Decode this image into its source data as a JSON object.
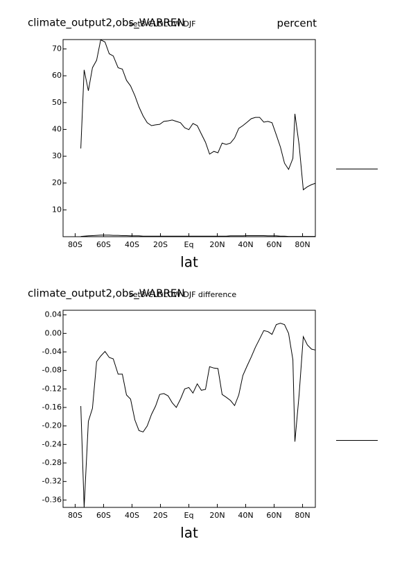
{
  "chart_data": [
    {
      "type": "line",
      "title": "climate_output2,obs_WARREN",
      "subtitle": "set3 CLDLOW DJF",
      "units": "percent",
      "xlabel": "lat",
      "x": [
        -76,
        -73.7,
        -70.7,
        -67.8,
        -64.9,
        -62,
        -59,
        -56,
        -53.2,
        -49.8,
        -46.8,
        -43.9,
        -41,
        -38,
        -35.1,
        -32.2,
        -29.3,
        -26.3,
        -23.4,
        -20.5,
        -17.6,
        -14.6,
        -11.7,
        -8.8,
        -5.9,
        -2.9,
        0,
        2.9,
        5.9,
        8.8,
        11.7,
        14.6,
        17.6,
        20.5,
        23.4,
        26.3,
        29.3,
        32.2,
        35.1,
        38,
        41,
        43.9,
        46.8,
        49.8,
        52.7,
        55.6,
        58.5,
        61.5,
        64.4,
        67.3,
        70.2,
        73.2,
        74.6,
        77.6,
        80.5,
        83.4,
        86.3,
        89
      ],
      "series": [
        {
          "color": "#000000",
          "values": [
            32.9,
            62.2,
            54.4,
            63,
            65.8,
            73.4,
            72.6,
            68.2,
            67.4,
            63,
            62.5,
            58.3,
            56.2,
            52.6,
            48.4,
            45,
            42.5,
            41.4,
            41.7,
            41.9,
            43,
            43.2,
            43.5,
            43,
            42.5,
            40.6,
            39.9,
            42.2,
            41.4,
            38.3,
            35.2,
            30.8,
            31.8,
            31.3,
            34.9,
            34.4,
            34.9,
            36.8,
            40.4,
            41.4,
            42.7,
            44,
            44.5,
            44.5,
            42.7,
            43,
            42.5,
            38,
            33.4,
            27.4,
            25.1,
            29.2,
            45.8,
            34.2,
            17.5,
            18.6,
            19.4,
            19.9
          ]
        },
        {
          "color": "#000000",
          "values": [
            0.1,
            0.2,
            0.3,
            0.4,
            0.5,
            0.6,
            0.6,
            0.6,
            0.5,
            0.5,
            0.4,
            0.4,
            0.3,
            0.3,
            0.3,
            0.2,
            0.2,
            0.2,
            0.2,
            0.2,
            0.2,
            0.2,
            0.2,
            0.2,
            0.2,
            0.2,
            0.2,
            0.2,
            0.2,
            0.2,
            0.2,
            0.2,
            0.2,
            0.2,
            0.2,
            0.2,
            0.3,
            0.3,
            0.3,
            0.3,
            0.4,
            0.4,
            0.4,
            0.4,
            0.4,
            0.3,
            0.3,
            0.3,
            0.2,
            0.2,
            0.1,
            0.1,
            0.1,
            0.1,
            0.1,
            0.1,
            0.1,
            0.1
          ]
        }
      ],
      "xlim": [
        -88.5,
        89
      ],
      "ylim": [
        0,
        73.5
      ],
      "xticks": [
        {
          "value": -80,
          "label": "80S"
        },
        {
          "value": -60,
          "label": "60S"
        },
        {
          "value": -40,
          "label": "40S"
        },
        {
          "value": -20,
          "label": "20S"
        },
        {
          "value": 0,
          "label": "Eq"
        },
        {
          "value": 20,
          "label": "20N"
        },
        {
          "value": 40,
          "label": "40N"
        },
        {
          "value": 60,
          "label": "60N"
        },
        {
          "value": 80,
          "label": "80N"
        }
      ],
      "yticks": [
        10,
        20,
        30,
        40,
        50,
        60,
        70
      ]
    },
    {
      "type": "line",
      "title": "climate_output2,obs_WARREN",
      "subtitle": "set3 CLDLOW DJF difference",
      "xlabel": "lat",
      "x": [
        -76,
        -73.7,
        -70.7,
        -67.8,
        -64.9,
        -62,
        -59,
        -56,
        -53.2,
        -49.8,
        -46.8,
        -43.9,
        -41,
        -38,
        -35.1,
        -32.2,
        -29.3,
        -26.3,
        -23.4,
        -20.5,
        -17.6,
        -14.6,
        -11.7,
        -8.8,
        -5.9,
        -2.9,
        0,
        2.9,
        5.9,
        8.8,
        11.7,
        14.6,
        17.6,
        20.5,
        23.4,
        26.3,
        29.3,
        32.2,
        35.1,
        38,
        41,
        43.9,
        46.8,
        49.8,
        52.7,
        55.6,
        58.5,
        61.5,
        64.4,
        67.3,
        70.2,
        73.2,
        74.6,
        77.6,
        80.5,
        83.4,
        86.3,
        89
      ],
      "series": [
        {
          "color": "#000000",
          "values": [
            -0.157,
            -0.376,
            -0.19,
            -0.162,
            -0.061,
            -0.049,
            -0.039,
            -0.052,
            -0.055,
            -0.088,
            -0.088,
            -0.133,
            -0.142,
            -0.187,
            -0.21,
            -0.213,
            -0.2,
            -0.175,
            -0.157,
            -0.132,
            -0.13,
            -0.135,
            -0.15,
            -0.16,
            -0.142,
            -0.12,
            -0.117,
            -0.129,
            -0.109,
            -0.123,
            -0.121,
            -0.072,
            -0.075,
            -0.076,
            -0.132,
            -0.138,
            -0.145,
            -0.156,
            -0.133,
            -0.091,
            -0.07,
            -0.051,
            -0.03,
            -0.012,
            0.006,
            0.004,
            -0.002,
            0.019,
            0.022,
            0.019,
            0,
            -0.057,
            -0.234,
            -0.132,
            -0.007,
            -0.025,
            -0.034,
            -0.036
          ]
        }
      ],
      "xlim": [
        -88.5,
        89
      ],
      "ylim": [
        -0.376,
        0.05
      ],
      "xticks": [
        {
          "value": -80,
          "label": "80S"
        },
        {
          "value": -60,
          "label": "60S"
        },
        {
          "value": -40,
          "label": "40S"
        },
        {
          "value": -20,
          "label": "20S"
        },
        {
          "value": 0,
          "label": "Eq"
        },
        {
          "value": 20,
          "label": "20N"
        },
        {
          "value": 40,
          "label": "40N"
        },
        {
          "value": 60,
          "label": "60N"
        },
        {
          "value": 80,
          "label": "80N"
        }
      ],
      "yticks": [
        0.04,
        {
          "value": 0,
          "label": "0.00"
        },
        -0.04,
        -0.08,
        -0.12,
        -0.16,
        {
          "value": -0.2,
          "label": "-0.20"
        },
        -0.24,
        -0.28,
        -0.32,
        -0.36
      ]
    }
  ]
}
